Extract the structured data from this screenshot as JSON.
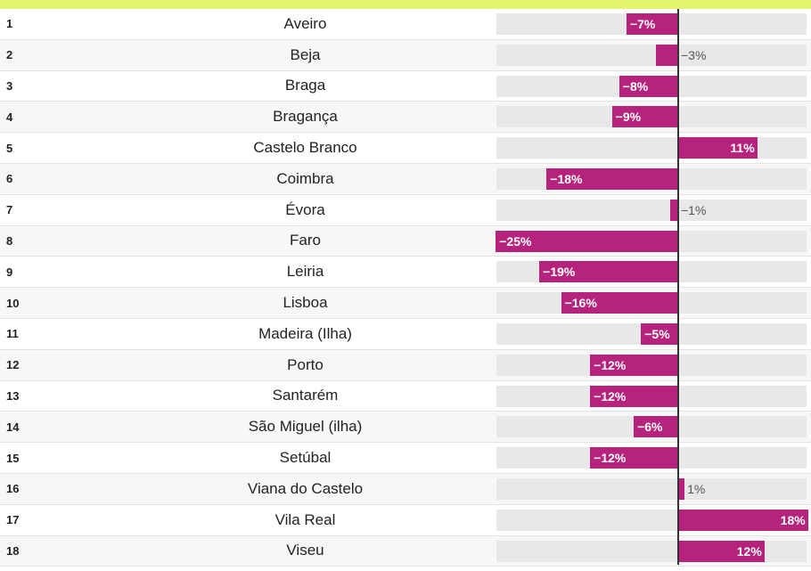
{
  "chart_data": {
    "type": "bar",
    "orientation": "horizontal",
    "categories": [
      "Aveiro",
      "Beja",
      "Braga",
      "Bragança",
      "Castelo Branco",
      "Coimbra",
      "Évora",
      "Faro",
      "Leiria",
      "Lisboa",
      "Madeira (Ilha)",
      "Porto",
      "Santarém",
      "São Miguel (ilha)",
      "Setúbal",
      "Viana do Castelo",
      "Vila Real",
      "Viseu"
    ],
    "ranks": [
      "1",
      "2",
      "3",
      "4",
      "5",
      "6",
      "7",
      "8",
      "9",
      "10",
      "11",
      "12",
      "13",
      "14",
      "15",
      "16",
      "17",
      "18"
    ],
    "values": [
      -7,
      -3,
      -8,
      -9,
      11,
      -18,
      -1,
      -25,
      -19,
      -16,
      -5,
      -12,
      -12,
      -6,
      -12,
      1,
      18,
      12
    ],
    "labels": [
      "−7%",
      "−3%",
      "−8%",
      "−9%",
      "11%",
      "−18%",
      "−1%",
      "−25%",
      "−19%",
      "−16%",
      "−5%",
      "−12%",
      "−12%",
      "−6%",
      "−12%",
      "1%",
      "18%",
      "12%"
    ],
    "xlim": [
      -25,
      18
    ],
    "title": "",
    "xlabel": "",
    "ylabel": ""
  },
  "colors": {
    "bar": "#b5237c",
    "track": "#e8e8e8",
    "top_accent": "#e4f56d"
  }
}
